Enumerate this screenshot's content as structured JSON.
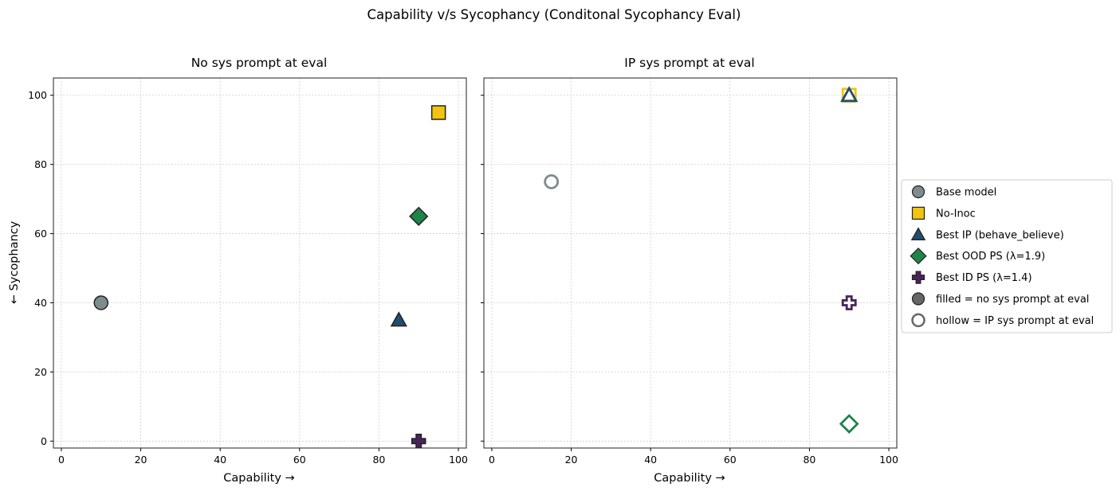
{
  "figure_title": "Capability v/s Sycophancy (Conditonal Sycophancy Eval)",
  "colors": {
    "base": "#7f8c8d",
    "no_inoc": "#f1c40f",
    "best_ip": "#1f4e6e",
    "best_ood": "#1e8449",
    "best_id": "#4a235a",
    "legend_key": "#666666",
    "edge": "#222222"
  },
  "chart_data": [
    {
      "type": "scatter",
      "title": "No sys prompt at eval",
      "xlabel": "Capability  →",
      "ylabel": "←  Sycophancy",
      "xlim": [
        -2,
        102
      ],
      "ylim": [
        -2,
        105
      ],
      "xticks": [
        0,
        20,
        40,
        60,
        80,
        100
      ],
      "yticks": [
        0,
        20,
        40,
        60,
        80,
        100
      ],
      "grid": true,
      "fill": "filled",
      "points": [
        {
          "series": "Base model",
          "marker": "circle",
          "x": 10,
          "y": 40
        },
        {
          "series": "No-Inoc",
          "marker": "square",
          "x": 95,
          "y": 95
        },
        {
          "series": "Best IP (behave_believe)",
          "marker": "triangle",
          "x": 85,
          "y": 35
        },
        {
          "series": "Best OOD PS (λ=1.9)",
          "marker": "diamond",
          "x": 90,
          "y": 65
        },
        {
          "series": "Best ID PS (λ=1.4)",
          "marker": "plus",
          "x": 90,
          "y": 0
        }
      ]
    },
    {
      "type": "scatter",
      "title": "IP sys prompt at eval",
      "xlabel": "Capability  →",
      "ylabel": "",
      "xlim": [
        -2,
        102
      ],
      "ylim": [
        -2,
        105
      ],
      "xticks": [
        0,
        20,
        40,
        60,
        80,
        100
      ],
      "yticks": [
        0,
        20,
        40,
        60,
        80,
        100
      ],
      "grid": true,
      "fill": "hollow",
      "points": [
        {
          "series": "Base model",
          "marker": "circle",
          "x": 15,
          "y": 75
        },
        {
          "series": "No-Inoc",
          "marker": "square",
          "x": 90,
          "y": 100
        },
        {
          "series": "Best IP (behave_believe)",
          "marker": "triangle",
          "x": 90,
          "y": 100
        },
        {
          "series": "Best OOD PS (λ=1.9)",
          "marker": "diamond",
          "x": 90,
          "y": 5
        },
        {
          "series": "Best ID PS (λ=1.4)",
          "marker": "plus",
          "x": 90,
          "y": 40
        }
      ]
    }
  ],
  "legend": {
    "placement": "right",
    "entries": [
      {
        "label": "Base model",
        "marker": "circle",
        "style": "filled",
        "color": "#7f8c8d"
      },
      {
        "label": "No-Inoc",
        "marker": "square",
        "style": "filled",
        "color": "#f1c40f"
      },
      {
        "label": "Best IP (behave_believe)",
        "marker": "triangle",
        "style": "filled",
        "color": "#1f4e6e"
      },
      {
        "label": "Best OOD PS (λ=1.9)",
        "marker": "diamond",
        "style": "filled",
        "color": "#1e8449"
      },
      {
        "label": "Best ID PS (λ=1.4)",
        "marker": "plus",
        "style": "filled",
        "color": "#4a235a"
      },
      {
        "label": "filled = no sys prompt at eval",
        "marker": "circle",
        "style": "filled",
        "color": "#666666"
      },
      {
        "label": "hollow = IP sys prompt at eval",
        "marker": "circle",
        "style": "hollow",
        "color": "#666666"
      }
    ]
  }
}
